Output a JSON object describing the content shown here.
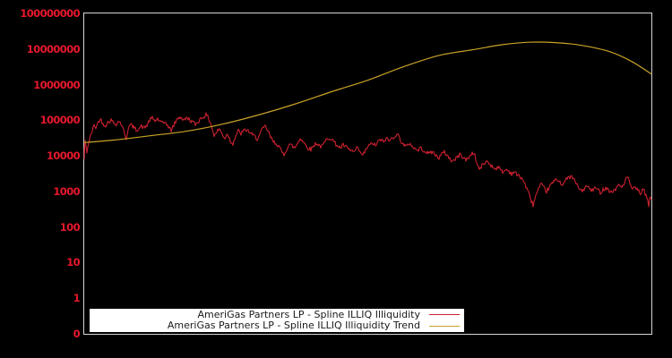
{
  "background_color": "#000000",
  "chart_data": {
    "type": "line",
    "title": "",
    "x_axis": {
      "tick_labels_visible": false
    },
    "y_axis": {
      "scale": "log10",
      "label_color": "#e8182c",
      "tick_labels": [
        "100000000",
        "10000000",
        "1000000",
        "100000",
        "10000",
        "1000",
        "100",
        "10",
        "1",
        "0"
      ],
      "tick_logs": [
        8,
        7,
        6,
        5,
        4,
        3,
        2,
        1,
        0,
        -1
      ],
      "range_top": 100000000,
      "range_bottom": 0
    },
    "plot": {
      "border_color": "#d6d6d6",
      "background": "#000000",
      "grid": "off"
    },
    "legend": {
      "position": "bottom-center",
      "background": "#ffffff",
      "text_color": "#1a1a1a"
    },
    "series": [
      {
        "name": "AmeriGas Partners LP - Spline ILLIQ Illiquidity",
        "color": "#cd2130",
        "style": "noisy-line",
        "noise_amp_log10": 0.06,
        "noise_seed": 42,
        "anchors_x_log10": [
          [
            93,
            4.3
          ],
          [
            94,
            3.92
          ],
          [
            95,
            4.4
          ],
          [
            97,
            4.12
          ],
          [
            99,
            4.38
          ],
          [
            101,
            4.55
          ],
          [
            103,
            4.72
          ],
          [
            105,
            4.85
          ],
          [
            107,
            4.8
          ],
          [
            110,
            4.96
          ],
          [
            112,
            5.04
          ],
          [
            115,
            4.9
          ],
          [
            118,
            4.86
          ],
          [
            121,
            4.96
          ],
          [
            124,
            5.0
          ],
          [
            127,
            4.93
          ],
          [
            130,
            4.9
          ],
          [
            133,
            4.98
          ],
          [
            136,
            4.86
          ],
          [
            139,
            4.62
          ],
          [
            141,
            4.48
          ],
          [
            143,
            4.78
          ],
          [
            146,
            4.88
          ],
          [
            149,
            4.8
          ],
          [
            152,
            4.73
          ],
          [
            155,
            4.78
          ],
          [
            158,
            4.83
          ],
          [
            161,
            4.78
          ],
          [
            164,
            4.86
          ],
          [
            167,
            5.0
          ],
          [
            170,
            5.06
          ],
          [
            173,
            4.98
          ],
          [
            176,
            5.04
          ],
          [
            179,
            4.95
          ],
          [
            182,
            4.9
          ],
          [
            185,
            4.96
          ],
          [
            188,
            4.8
          ],
          [
            191,
            4.72
          ],
          [
            194,
            4.86
          ],
          [
            197,
            5.0
          ],
          [
            200,
            5.1
          ],
          [
            203,
            5.05
          ],
          [
            206,
            5.0
          ],
          [
            209,
            5.08
          ],
          [
            212,
            5.0
          ],
          [
            215,
            4.95
          ],
          [
            218,
            4.88
          ],
          [
            221,
            4.96
          ],
          [
            224,
            5.05
          ],
          [
            227,
            5.1
          ],
          [
            230,
            5.15
          ],
          [
            233,
            5.05
          ],
          [
            236,
            4.85
          ],
          [
            239,
            4.55
          ],
          [
            242,
            4.68
          ],
          [
            245,
            4.76
          ],
          [
            248,
            4.6
          ],
          [
            251,
            4.5
          ],
          [
            254,
            4.63
          ],
          [
            257,
            4.42
          ],
          [
            260,
            4.35
          ],
          [
            263,
            4.56
          ],
          [
            266,
            4.7
          ],
          [
            269,
            4.62
          ],
          [
            272,
            4.7
          ],
          [
            275,
            4.73
          ],
          [
            278,
            4.68
          ],
          [
            281,
            4.6
          ],
          [
            284,
            4.55
          ],
          [
            287,
            4.48
          ],
          [
            290,
            4.6
          ],
          [
            293,
            4.76
          ],
          [
            296,
            4.82
          ],
          [
            299,
            4.7
          ],
          [
            302,
            4.52
          ],
          [
            305,
            4.4
          ],
          [
            308,
            4.35
          ],
          [
            311,
            4.28
          ],
          [
            314,
            4.12
          ],
          [
            317,
            4.04
          ],
          [
            320,
            4.2
          ],
          [
            323,
            4.32
          ],
          [
            326,
            4.28
          ],
          [
            329,
            4.22
          ],
          [
            332,
            4.35
          ],
          [
            335,
            4.5
          ],
          [
            338,
            4.42
          ],
          [
            341,
            4.3
          ],
          [
            344,
            4.22
          ],
          [
            347,
            4.18
          ],
          [
            350,
            4.28
          ],
          [
            353,
            4.36
          ],
          [
            356,
            4.3
          ],
          [
            359,
            4.25
          ],
          [
            362,
            4.36
          ],
          [
            365,
            4.48
          ],
          [
            368,
            4.52
          ],
          [
            371,
            4.45
          ],
          [
            374,
            4.35
          ],
          [
            377,
            4.28
          ],
          [
            380,
            4.22
          ],
          [
            383,
            4.3
          ],
          [
            386,
            4.25
          ],
          [
            389,
            4.18
          ],
          [
            392,
            4.15
          ],
          [
            395,
            4.1
          ],
          [
            398,
            4.2
          ],
          [
            401,
            4.15
          ],
          [
            404,
            4.0
          ],
          [
            407,
            4.1
          ],
          [
            410,
            4.25
          ],
          [
            413,
            4.3
          ],
          [
            416,
            4.36
          ],
          [
            419,
            4.28
          ],
          [
            422,
            4.4
          ],
          [
            425,
            4.45
          ],
          [
            428,
            4.38
          ],
          [
            431,
            4.5
          ],
          [
            434,
            4.42
          ],
          [
            437,
            4.48
          ],
          [
            440,
            4.55
          ],
          [
            443,
            4.62
          ],
          [
            445,
            4.54
          ],
          [
            448,
            4.4
          ],
          [
            451,
            4.3
          ],
          [
            454,
            4.25
          ],
          [
            457,
            4.36
          ],
          [
            460,
            4.28
          ],
          [
            463,
            4.2
          ],
          [
            466,
            4.15
          ],
          [
            469,
            4.22
          ],
          [
            472,
            4.18
          ],
          [
            475,
            4.12
          ],
          [
            478,
            4.05
          ],
          [
            481,
            4.12
          ],
          [
            484,
            4.08
          ],
          [
            487,
            4.0
          ],
          [
            490,
            3.95
          ],
          [
            493,
            4.05
          ],
          [
            496,
            4.1
          ],
          [
            499,
            4.02
          ],
          [
            502,
            3.92
          ],
          [
            505,
            3.85
          ],
          [
            508,
            3.9
          ],
          [
            511,
            3.98
          ],
          [
            514,
            4.05
          ],
          [
            517,
            3.95
          ],
          [
            520,
            3.88
          ],
          [
            523,
            3.95
          ],
          [
            526,
            4.05
          ],
          [
            529,
            4.1
          ],
          [
            532,
            3.8
          ],
          [
            535,
            3.62
          ],
          [
            538,
            3.72
          ],
          [
            541,
            3.8
          ],
          [
            544,
            3.85
          ],
          [
            547,
            3.76
          ],
          [
            550,
            3.68
          ],
          [
            553,
            3.64
          ],
          [
            556,
            3.7
          ],
          [
            559,
            3.58
          ],
          [
            562,
            3.55
          ],
          [
            565,
            3.62
          ],
          [
            568,
            3.57
          ],
          [
            571,
            3.5
          ],
          [
            574,
            3.56
          ],
          [
            577,
            3.46
          ],
          [
            580,
            3.42
          ],
          [
            583,
            3.36
          ],
          [
            586,
            3.2
          ],
          [
            589,
            3.02
          ],
          [
            592,
            2.8
          ],
          [
            595,
            2.62
          ],
          [
            598,
            2.88
          ],
          [
            601,
            3.06
          ],
          [
            604,
            3.18
          ],
          [
            607,
            3.1
          ],
          [
            610,
            3.0
          ],
          [
            613,
            3.12
          ],
          [
            616,
            3.22
          ],
          [
            619,
            3.3
          ],
          [
            622,
            3.34
          ],
          [
            625,
            3.27
          ],
          [
            628,
            3.2
          ],
          [
            631,
            3.3
          ],
          [
            634,
            3.38
          ],
          [
            637,
            3.42
          ],
          [
            640,
            3.36
          ],
          [
            643,
            3.22
          ],
          [
            646,
            3.1
          ],
          [
            649,
            3.0
          ],
          [
            652,
            3.08
          ],
          [
            655,
            3.15
          ],
          [
            658,
            3.08
          ],
          [
            661,
            3.02
          ],
          [
            664,
            3.1
          ],
          [
            667,
            3.05
          ],
          [
            670,
            2.98
          ],
          [
            673,
            3.05
          ],
          [
            676,
            3.12
          ],
          [
            679,
            3.05
          ],
          [
            682,
            2.98
          ],
          [
            685,
            3.02
          ],
          [
            688,
            3.1
          ],
          [
            691,
            3.18
          ],
          [
            694,
            3.12
          ],
          [
            697,
            3.26
          ],
          [
            700,
            3.42
          ],
          [
            703,
            3.22
          ],
          [
            706,
            3.05
          ],
          [
            709,
            3.1
          ],
          [
            712,
            3.02
          ],
          [
            715,
            2.95
          ],
          [
            718,
            3.05
          ],
          [
            721,
            2.9
          ],
          [
            724,
            2.6
          ],
          [
            726,
            2.88
          ],
          [
            728,
            2.55
          ]
        ]
      },
      {
        "name": "AmeriGas Partners LP - Spline ILLIQ Illiquidity Trend",
        "color": "#c9a227",
        "style": "smooth-line",
        "anchors_x_log10": [
          [
            93,
            4.37
          ],
          [
            130,
            4.45
          ],
          [
            170,
            4.57
          ],
          [
            210,
            4.7
          ],
          [
            250,
            4.9
          ],
          [
            290,
            5.16
          ],
          [
            330,
            5.46
          ],
          [
            370,
            5.8
          ],
          [
            410,
            6.12
          ],
          [
            450,
            6.5
          ],
          [
            490,
            6.82
          ],
          [
            530,
            6.99
          ],
          [
            560,
            7.12
          ],
          [
            590,
            7.19
          ],
          [
            620,
            7.18
          ],
          [
            650,
            7.1
          ],
          [
            680,
            6.93
          ],
          [
            705,
            6.65
          ],
          [
            728,
            6.28
          ]
        ]
      }
    ]
  }
}
